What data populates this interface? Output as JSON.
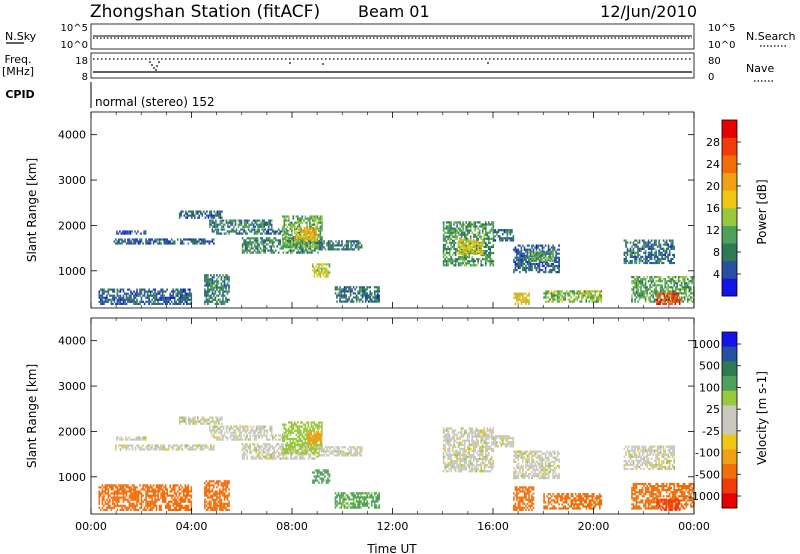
{
  "header": {
    "title": "Zhongshan Station (fitACF)",
    "beam": "Beam 01",
    "date": "12/Jun/2010"
  },
  "status_panels": {
    "nsky_label": "N.Sky",
    "nsearch_label": "N.Search",
    "nsky_ticks": [
      "10^5",
      "10^0"
    ],
    "nsearch_ticks": [
      "10^5",
      "10^0"
    ],
    "freq_label": "Freq.",
    "freq_unit": "[MHz]",
    "freq_ticks": [
      "18",
      "8"
    ],
    "nave_label": "Nave",
    "nave_ticks": [
      "80",
      "0"
    ],
    "cpid_label": "CPID",
    "cpid_text": "normal (stereo) 152"
  },
  "colors": {
    "power": [
      "#1414e6",
      "#2850a0",
      "#2f7a55",
      "#4fa05a",
      "#98c83c",
      "#f0c814",
      "#f0a014",
      "#f06e0a",
      "#f03c0a",
      "#e60000"
    ],
    "velocity_pos": [
      "#1414e6",
      "#2850a0",
      "#2f7a55",
      "#4fa05a",
      "#98c83c"
    ],
    "velocity_gray": "#c8c8be",
    "velocity_neg": [
      "#f0c814",
      "#f0a014",
      "#f06e0a",
      "#f03c0a",
      "#e60000"
    ]
  },
  "chart_data": [
    {
      "type": "heatmap",
      "name": "power",
      "ylabel": "Slant Range [km]",
      "ylim": [
        180,
        4500
      ],
      "xlim_hours": [
        0,
        24
      ],
      "y_ticks": [
        1000,
        2000,
        3000,
        4000
      ],
      "x_ticks": [
        "00:00",
        "04:00",
        "08:00",
        "12:00",
        "16:00",
        "20:00",
        "00:00"
      ],
      "colorbar": {
        "label": "Power [dB]",
        "range": [
          0,
          32
        ],
        "tick_values": [
          4,
          8,
          12,
          16,
          20,
          24,
          28
        ],
        "tick_labels": [
          "4",
          "8",
          "12",
          "16",
          "20",
          "24",
          "28"
        ]
      },
      "regions": [
        {
          "t": [
            0.9,
            4.9
          ],
          "r": [
            1580,
            1700
          ],
          "v": 6
        },
        {
          "t": [
            1.0,
            2.2
          ],
          "r": [
            1800,
            1880
          ],
          "v": 5
        },
        {
          "t": [
            3.5,
            5.2
          ],
          "r": [
            2150,
            2300
          ],
          "v": 6
        },
        {
          "t": [
            4.8,
            7.8
          ],
          "r": [
            1800,
            1900
          ],
          "v": 7
        },
        {
          "t": [
            4.7,
            7.2
          ],
          "r": [
            1950,
            2100
          ],
          "v": 8
        },
        {
          "t": [
            6.0,
            9.0
          ],
          "r": [
            1380,
            1700
          ],
          "v": 9
        },
        {
          "t": [
            7.6,
            9.2
          ],
          "r": [
            1500,
            2200
          ],
          "v": 12
        },
        {
          "t": [
            8.1,
            9.0
          ],
          "r": [
            1650,
            1950
          ],
          "v": 19
        },
        {
          "t": [
            9.0,
            10.8
          ],
          "r": [
            1450,
            1650
          ],
          "v": 8
        },
        {
          "t": [
            8.8,
            9.5
          ],
          "r": [
            850,
            1150
          ],
          "v": 16
        },
        {
          "t": [
            9.7,
            11.5
          ],
          "r": [
            300,
            650
          ],
          "v": 7
        },
        {
          "t": [
            0.3,
            4.0
          ],
          "r": [
            250,
            600
          ],
          "v": 6
        },
        {
          "t": [
            4.5,
            5.5
          ],
          "r": [
            250,
            900
          ],
          "v": 8
        },
        {
          "t": [
            14.0,
            16.0
          ],
          "r": [
            1100,
            2050
          ],
          "v": 10
        },
        {
          "t": [
            14.6,
            15.6
          ],
          "r": [
            1350,
            1700
          ],
          "v": 17
        },
        {
          "t": [
            16.0,
            16.8
          ],
          "r": [
            1650,
            1900
          ],
          "v": 7
        },
        {
          "t": [
            16.8,
            18.6
          ],
          "r": [
            950,
            1550
          ],
          "v": 6
        },
        {
          "t": [
            17.4,
            18.4
          ],
          "r": [
            1200,
            1400
          ],
          "v": 11
        },
        {
          "t": [
            18.0,
            20.3
          ],
          "r": [
            300,
            550
          ],
          "v": 13
        },
        {
          "t": [
            16.8,
            17.4
          ],
          "r": [
            250,
            500
          ],
          "v": 18
        },
        {
          "t": [
            21.2,
            23.2
          ],
          "r": [
            1150,
            1650
          ],
          "v": 7
        },
        {
          "t": [
            21.5,
            24.0
          ],
          "r": [
            300,
            850
          ],
          "v": 11
        },
        {
          "t": [
            22.5,
            23.4
          ],
          "r": [
            250,
            480
          ],
          "v": 27
        }
      ]
    },
    {
      "type": "heatmap",
      "name": "velocity",
      "ylabel": "Slant Range [km]",
      "ylim": [
        180,
        4500
      ],
      "xlim_hours": [
        0,
        24
      ],
      "y_ticks": [
        1000,
        2000,
        3000,
        4000
      ],
      "x_ticks": [
        "00:00",
        "04:00",
        "08:00",
        "12:00",
        "16:00",
        "20:00",
        "00:00"
      ],
      "xlabel": "Time UT",
      "colorbar": {
        "label": "Velocity [m s-1]",
        "tick_labels": [
          "1000",
          "500",
          "100",
          "25",
          "-25",
          "-100",
          "-500",
          "-1000"
        ]
      },
      "regions": [
        {
          "t": [
            0.9,
            4.9
          ],
          "r": [
            1580,
            1700
          ],
          "v": 0
        },
        {
          "t": [
            1.0,
            2.2
          ],
          "r": [
            1800,
            1880
          ],
          "v": 0
        },
        {
          "t": [
            3.5,
            5.2
          ],
          "r": [
            2150,
            2300
          ],
          "v": 0
        },
        {
          "t": [
            4.8,
            7.8
          ],
          "r": [
            1800,
            1900
          ],
          "v": 0
        },
        {
          "t": [
            4.7,
            7.2
          ],
          "r": [
            1950,
            2100
          ],
          "v": 0
        },
        {
          "t": [
            6.0,
            9.0
          ],
          "r": [
            1380,
            1700
          ],
          "v": 0
        },
        {
          "t": [
            7.6,
            9.2
          ],
          "r": [
            1500,
            2200
          ],
          "v": 60
        },
        {
          "t": [
            8.6,
            9.2
          ],
          "r": [
            1700,
            2000
          ],
          "v": -150
        },
        {
          "t": [
            9.0,
            10.8
          ],
          "r": [
            1450,
            1650
          ],
          "v": 0
        },
        {
          "t": [
            8.8,
            9.5
          ],
          "r": [
            850,
            1150
          ],
          "v": 150
        },
        {
          "t": [
            9.7,
            11.5
          ],
          "r": [
            300,
            650
          ],
          "v": 120
        },
        {
          "t": [
            0.3,
            4.0
          ],
          "r": [
            250,
            800
          ],
          "v": -250
        },
        {
          "t": [
            4.5,
            5.5
          ],
          "r": [
            250,
            900
          ],
          "v": -300
        },
        {
          "t": [
            14.0,
            16.0
          ],
          "r": [
            1100,
            2050
          ],
          "v": 0
        },
        {
          "t": [
            16.0,
            16.8
          ],
          "r": [
            1650,
            1900
          ],
          "v": 0
        },
        {
          "t": [
            16.8,
            18.6
          ],
          "r": [
            950,
            1550
          ],
          "v": 0
        },
        {
          "t": [
            18.0,
            20.3
          ],
          "r": [
            280,
            600
          ],
          "v": -350
        },
        {
          "t": [
            16.8,
            17.6
          ],
          "r": [
            250,
            750
          ],
          "v": -300
        },
        {
          "t": [
            21.2,
            23.2
          ],
          "r": [
            1150,
            1650
          ],
          "v": 0
        },
        {
          "t": [
            21.5,
            24.0
          ],
          "r": [
            280,
            850
          ],
          "v": -350
        },
        {
          "t": [
            22.5,
            23.4
          ],
          "r": [
            250,
            480
          ],
          "v": -700
        }
      ]
    }
  ]
}
